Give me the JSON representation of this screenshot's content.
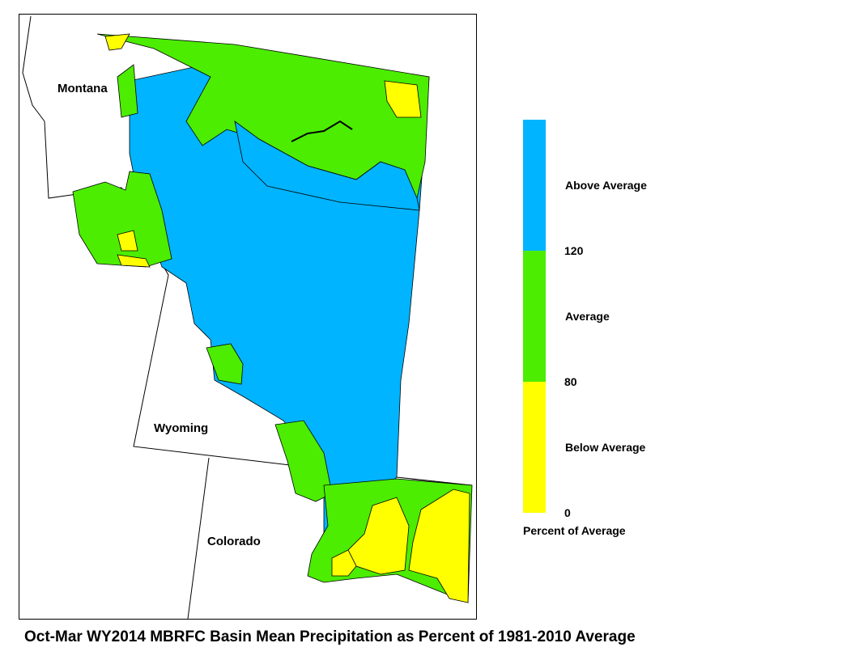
{
  "title": "Oct-Mar WY2014 MBRFC Basin Mean Precipitation as Percent of 1981-2010 Average",
  "state_labels": [
    "Montana",
    "Wyoming",
    "Colorado"
  ],
  "legend": {
    "title": "Percent of Average",
    "classes": [
      {
        "label": "Above Average",
        "color": "#00b4ff"
      },
      {
        "label": "Average",
        "color": "#4ced00"
      },
      {
        "label": "Below Average",
        "color": "#ffff00"
      }
    ],
    "ticks": [
      120,
      80,
      0
    ]
  }
}
